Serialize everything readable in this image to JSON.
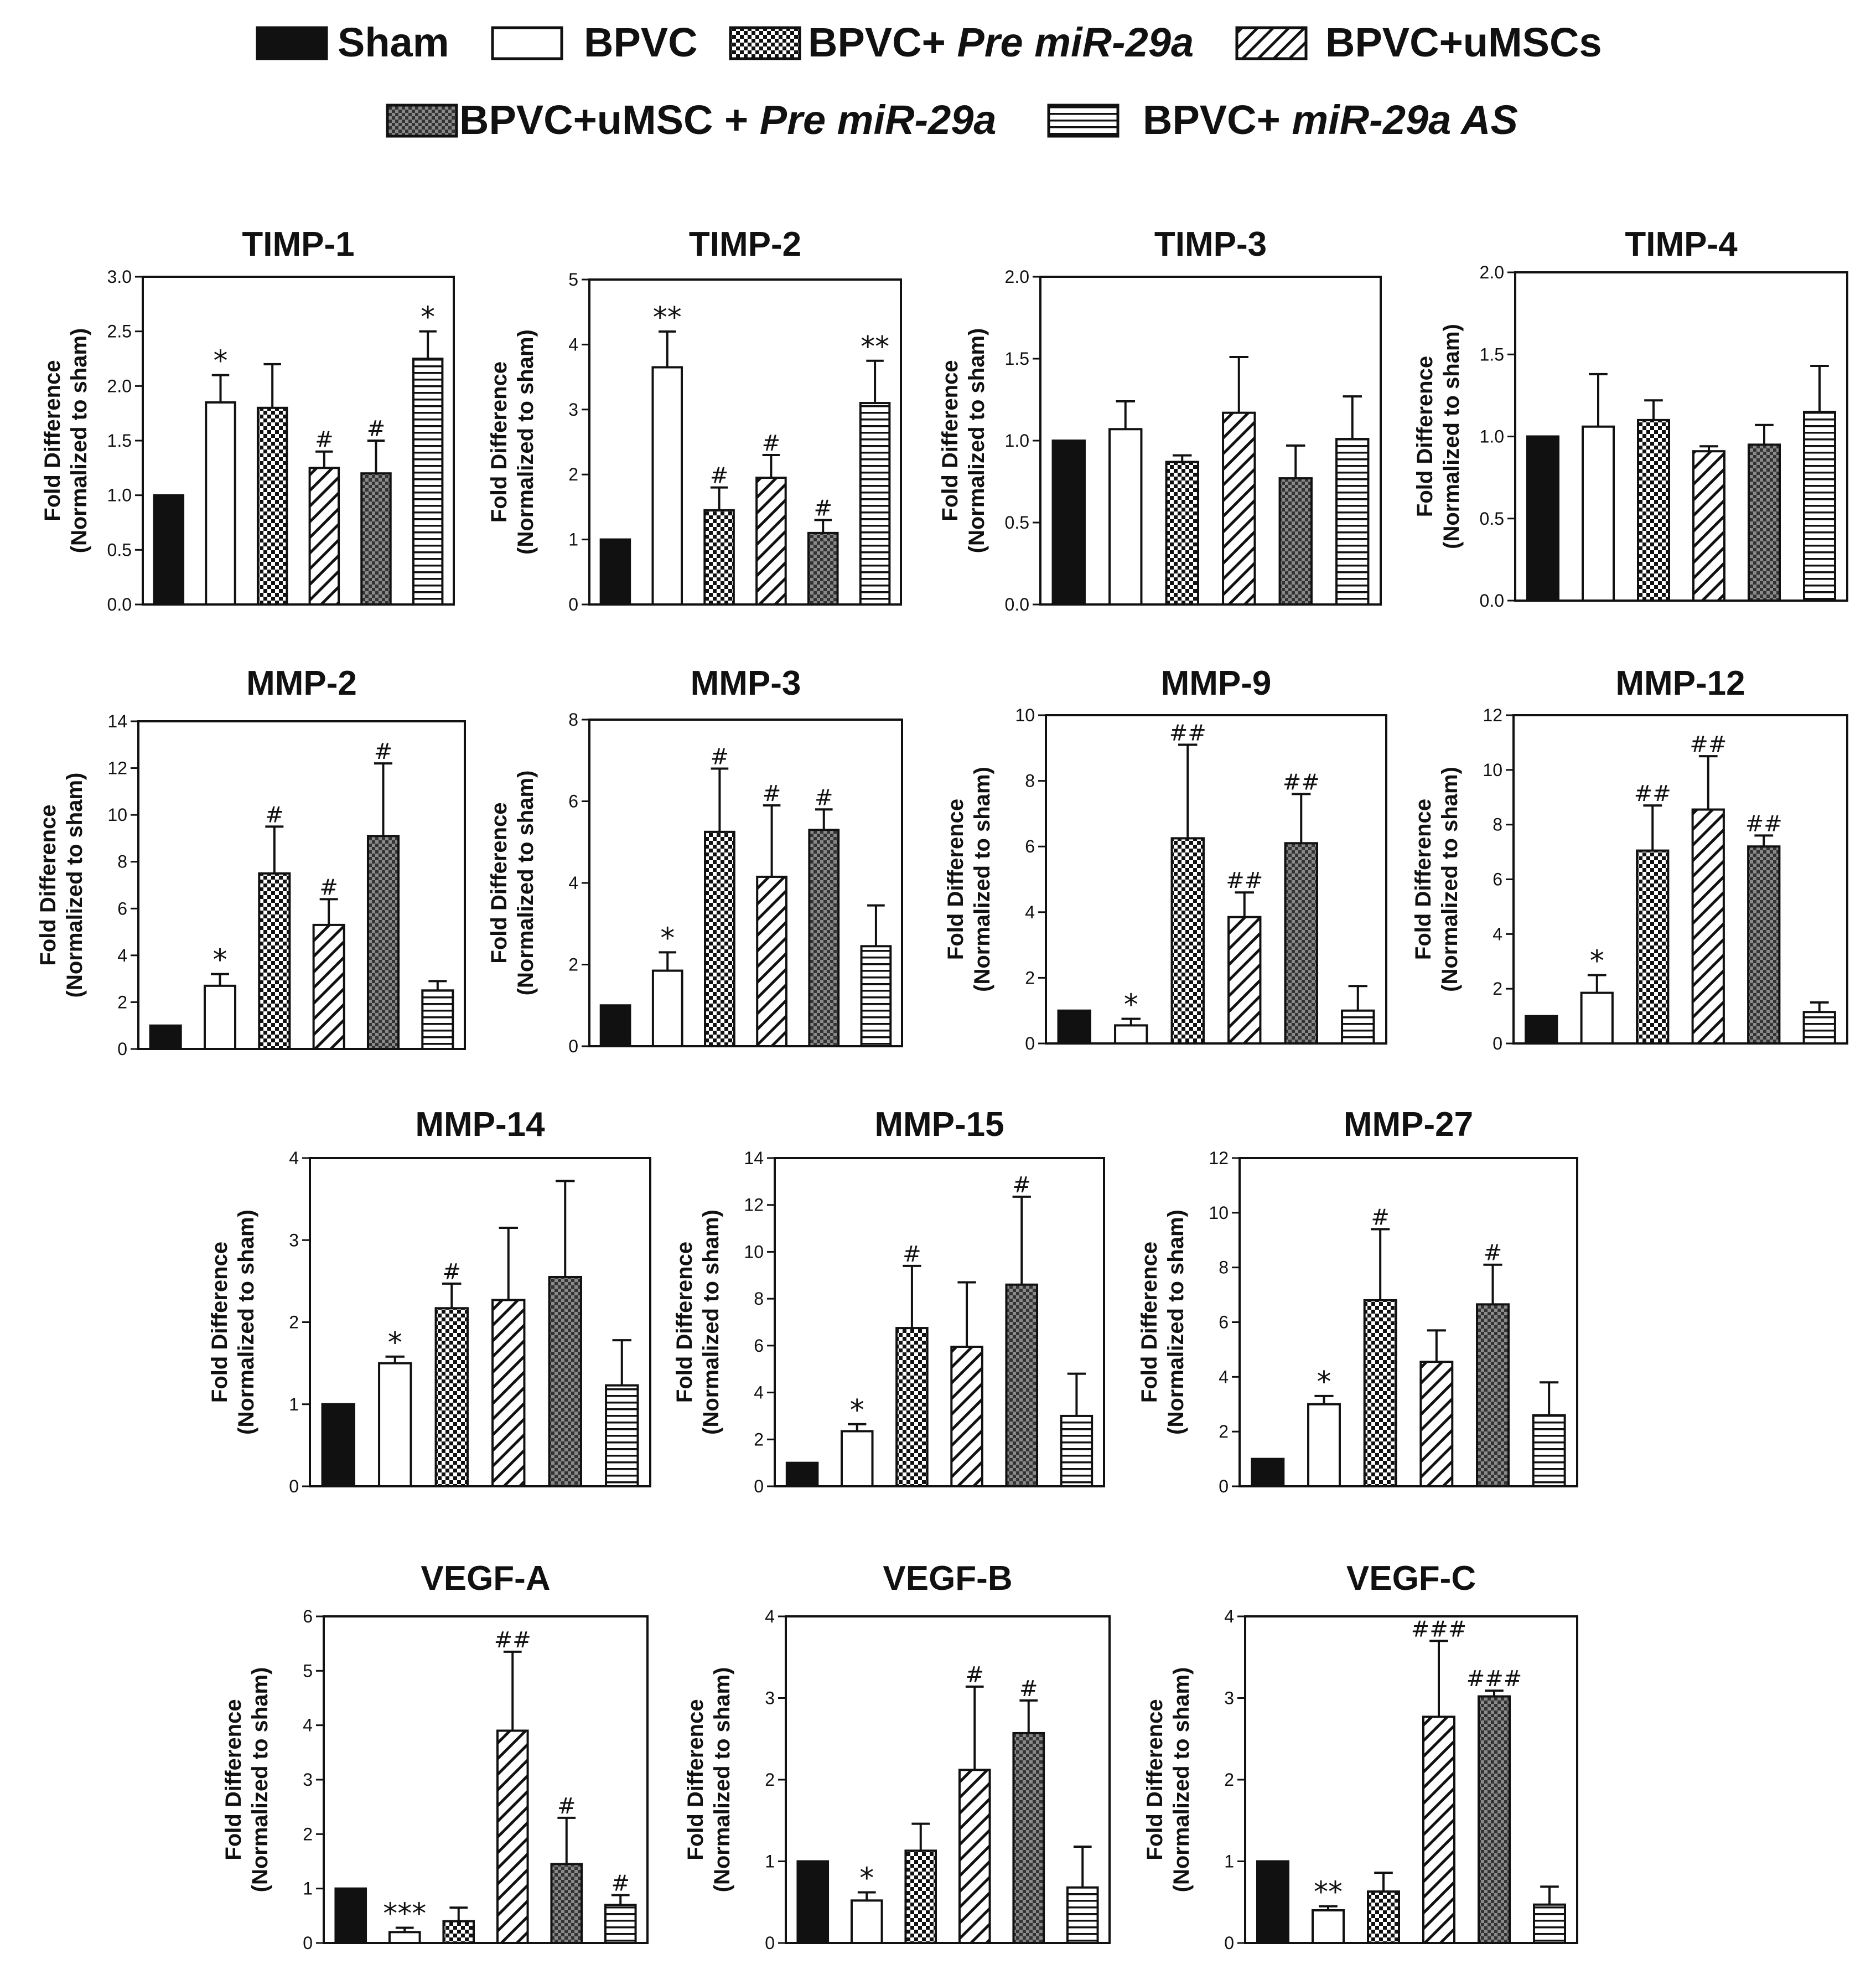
{
  "figure": {
    "ylabel_line1": "Fold Difference",
    "ylabel_line2": "(Normalized to sham)"
  },
  "legend": {
    "items": [
      {
        "key": "sham",
        "parts": [
          {
            "text": "Sham",
            "italic": false
          }
        ]
      },
      {
        "key": "bpvc",
        "parts": [
          {
            "text": "BPVC",
            "italic": false
          }
        ]
      },
      {
        "key": "pre",
        "parts": [
          {
            "text": "BPVC+ ",
            "italic": false
          },
          {
            "text": "Pre miR-29a",
            "italic": true
          }
        ]
      },
      {
        "key": "umsc",
        "parts": [
          {
            "text": "BPVC+uMSCs",
            "italic": false
          }
        ]
      },
      {
        "key": "umscpre",
        "parts": [
          {
            "text": "BPVC+uMSC + ",
            "italic": false
          },
          {
            "text": "Pre miR-29a",
            "italic": true
          }
        ]
      },
      {
        "key": "as",
        "parts": [
          {
            "text": "BPVC+ ",
            "italic": false
          },
          {
            "text": "miR-29a AS",
            "italic": true
          }
        ]
      }
    ]
  },
  "chart_data": [
    {
      "type": "bar",
      "title": "TIMP-1",
      "ylim": [
        0,
        3
      ],
      "yticks": [
        "0.0",
        "0.5",
        "1.0",
        "1.5",
        "2.0",
        "2.5",
        "3.0"
      ],
      "categories": [
        "Sham",
        "BPVC",
        "BPVC+ Pre miR-29a",
        "BPVC+uMSCs",
        "BPVC+uMSC + Pre miR-29a",
        "BPVC+ miR-29a AS"
      ],
      "values": [
        1.0,
        1.85,
        1.8,
        1.25,
        1.2,
        2.25
      ],
      "errors": [
        0,
        0.25,
        0.4,
        0.15,
        0.3,
        0.25
      ],
      "annotations": [
        "",
        "*",
        "",
        "#",
        "#",
        "*"
      ]
    },
    {
      "type": "bar",
      "title": "TIMP-2",
      "ylim": [
        0,
        5
      ],
      "yticks": [
        "0",
        "1",
        "2",
        "3",
        "4",
        "5"
      ],
      "categories": [
        "Sham",
        "BPVC",
        "BPVC+ Pre miR-29a",
        "BPVC+uMSCs",
        "BPVC+uMSC + Pre miR-29a",
        "BPVC+ miR-29a AS"
      ],
      "values": [
        1.0,
        3.65,
        1.45,
        1.95,
        1.1,
        3.1
      ],
      "errors": [
        0,
        0.55,
        0.35,
        0.35,
        0.2,
        0.65
      ],
      "annotations": [
        "",
        "**",
        "#",
        "#",
        "#",
        "**"
      ]
    },
    {
      "type": "bar",
      "title": "TIMP-3",
      "ylim": [
        0,
        2
      ],
      "yticks": [
        "0.0",
        "0.5",
        "1.0",
        "1.5",
        "2.0"
      ],
      "categories": [
        "Sham",
        "BPVC",
        "BPVC+ Pre miR-29a",
        "BPVC+uMSCs",
        "BPVC+uMSC + Pre miR-29a",
        "BPVC+ miR-29a AS"
      ],
      "values": [
        1.0,
        1.07,
        0.87,
        1.17,
        0.77,
        1.01
      ],
      "errors": [
        0,
        0.17,
        0.04,
        0.34,
        0.2,
        0.26
      ],
      "annotations": [
        "",
        "",
        "",
        "",
        "",
        ""
      ]
    },
    {
      "type": "bar",
      "title": "TIMP-4",
      "ylim": [
        0,
        2
      ],
      "yticks": [
        "0.0",
        "0.5",
        "1.0",
        "1.5",
        "2.0"
      ],
      "categories": [
        "Sham",
        "BPVC",
        "BPVC+ Pre miR-29a",
        "BPVC+uMSCs",
        "BPVC+uMSC + Pre miR-29a",
        "BPVC+ miR-29a AS"
      ],
      "values": [
        1.0,
        1.06,
        1.1,
        0.91,
        0.95,
        1.15
      ],
      "errors": [
        0,
        0.32,
        0.12,
        0.03,
        0.12,
        0.28
      ],
      "annotations": [
        "",
        "",
        "",
        "",
        "",
        ""
      ]
    },
    {
      "type": "bar",
      "title": "MMP-2",
      "ylim": [
        0,
        14
      ],
      "yticks": [
        "0",
        "2",
        "4",
        "6",
        "8",
        "10",
        "12",
        "14"
      ],
      "categories": [
        "Sham",
        "BPVC",
        "BPVC+ Pre miR-29a",
        "BPVC+uMSCs",
        "BPVC+uMSC + Pre miR-29a",
        "BPVC+ miR-29a AS"
      ],
      "values": [
        1.0,
        2.7,
        7.5,
        5.3,
        9.1,
        2.5
      ],
      "errors": [
        0,
        0.5,
        2.0,
        1.1,
        3.1,
        0.4
      ],
      "annotations": [
        "",
        "*",
        "#",
        "#",
        "#",
        ""
      ]
    },
    {
      "type": "bar",
      "title": "MMP-3",
      "ylim": [
        0,
        8
      ],
      "yticks": [
        "0",
        "2",
        "4",
        "6",
        "8"
      ],
      "categories": [
        "Sham",
        "BPVC",
        "BPVC+ Pre miR-29a",
        "BPVC+uMSCs",
        "BPVC+uMSC + Pre miR-29a",
        "BPVC+ miR-29a AS"
      ],
      "values": [
        1.0,
        1.85,
        5.25,
        4.15,
        5.3,
        2.45
      ],
      "errors": [
        0,
        0.45,
        1.55,
        1.75,
        0.5,
        1.0
      ],
      "annotations": [
        "",
        "*",
        "#",
        "#",
        "#",
        ""
      ]
    },
    {
      "type": "bar",
      "title": "MMP-9",
      "ylim": [
        0,
        10
      ],
      "yticks": [
        "0",
        "2",
        "4",
        "6",
        "8",
        "10"
      ],
      "categories": [
        "Sham",
        "BPVC",
        "BPVC+ Pre miR-29a",
        "BPVC+uMSCs",
        "BPVC+uMSC + Pre miR-29a",
        "BPVC+ miR-29a AS"
      ],
      "values": [
        1.0,
        0.55,
        6.25,
        3.85,
        6.1,
        1.0
      ],
      "errors": [
        0,
        0.2,
        2.85,
        0.75,
        1.5,
        0.75
      ],
      "annotations": [
        "",
        "*",
        "##",
        "##",
        "##",
        ""
      ]
    },
    {
      "type": "bar",
      "title": "MMP-12",
      "ylim": [
        0,
        12
      ],
      "yticks": [
        "0",
        "2",
        "4",
        "6",
        "8",
        "10",
        "12"
      ],
      "categories": [
        "Sham",
        "BPVC",
        "BPVC+ Pre miR-29a",
        "BPVC+uMSCs",
        "BPVC+uMSC + Pre miR-29a",
        "BPVC+ miR-29a AS"
      ],
      "values": [
        1.0,
        1.85,
        7.05,
        8.55,
        7.2,
        1.15
      ],
      "errors": [
        0,
        0.65,
        1.65,
        1.95,
        0.4,
        0.35
      ],
      "annotations": [
        "",
        "*",
        "##",
        "##",
        "##",
        ""
      ]
    },
    {
      "type": "bar",
      "title": "MMP-14",
      "ylim": [
        0,
        4
      ],
      "yticks": [
        "0",
        "1",
        "2",
        "3",
        "4"
      ],
      "categories": [
        "Sham",
        "BPVC",
        "BPVC+ Pre miR-29a",
        "BPVC+uMSCs",
        "BPVC+uMSC + Pre miR-29a",
        "BPVC+ miR-29a AS"
      ],
      "values": [
        1.0,
        1.5,
        2.17,
        2.27,
        2.55,
        1.23
      ],
      "errors": [
        0,
        0.08,
        0.3,
        0.88,
        1.17,
        0.55
      ],
      "annotations": [
        "",
        "*",
        "#",
        "",
        "",
        ""
      ]
    },
    {
      "type": "bar",
      "title": "MMP-15",
      "ylim": [
        0,
        14
      ],
      "yticks": [
        "0",
        "2",
        "4",
        "6",
        "8",
        "10",
        "12",
        "14"
      ],
      "categories": [
        "Sham",
        "BPVC",
        "BPVC+ Pre miR-29a",
        "BPVC+uMSCs",
        "BPVC+uMSC + Pre miR-29a",
        "BPVC+ miR-29a AS"
      ],
      "values": [
        1.0,
        2.35,
        6.75,
        5.95,
        8.6,
        3.0
      ],
      "errors": [
        0,
        0.3,
        2.65,
        2.75,
        3.75,
        1.8
      ],
      "annotations": [
        "",
        "*",
        "#",
        "",
        "#",
        ""
      ]
    },
    {
      "type": "bar",
      "title": "MMP-27",
      "ylim": [
        0,
        12
      ],
      "yticks": [
        "0",
        "2",
        "4",
        "6",
        "8",
        "10",
        "12"
      ],
      "categories": [
        "Sham",
        "BPVC",
        "BPVC+ Pre miR-29a",
        "BPVC+uMSCs",
        "BPVC+uMSC + Pre miR-29a",
        "BPVC+ miR-29a AS"
      ],
      "values": [
        1.0,
        3.0,
        6.8,
        4.55,
        6.65,
        2.6
      ],
      "errors": [
        0,
        0.3,
        2.6,
        1.15,
        1.45,
        1.2
      ],
      "annotations": [
        "",
        "*",
        "#",
        "",
        "#",
        ""
      ]
    },
    {
      "type": "bar",
      "title": "VEGF-A",
      "ylim": [
        0,
        6
      ],
      "yticks": [
        "0",
        "1",
        "2",
        "3",
        "4",
        "5",
        "6"
      ],
      "categories": [
        "Sham",
        "BPVC",
        "BPVC+ Pre miR-29a",
        "BPVC+uMSCs",
        "BPVC+uMSC + Pre miR-29a",
        "BPVC+ miR-29a AS"
      ],
      "values": [
        1.0,
        0.2,
        0.4,
        3.9,
        1.45,
        0.7
      ],
      "errors": [
        0,
        0.08,
        0.25,
        1.45,
        0.85,
        0.18
      ],
      "annotations": [
        "",
        "***",
        "",
        "##",
        "#",
        "#"
      ]
    },
    {
      "type": "bar",
      "title": "VEGF-B",
      "ylim": [
        0,
        4
      ],
      "yticks": [
        "0",
        "1",
        "2",
        "3",
        "4"
      ],
      "categories": [
        "Sham",
        "BPVC",
        "BPVC+ Pre miR-29a",
        "BPVC+uMSCs",
        "BPVC+uMSC + Pre miR-29a",
        "BPVC+ miR-29a AS"
      ],
      "values": [
        1.0,
        0.52,
        1.13,
        2.12,
        2.57,
        0.68
      ],
      "errors": [
        0,
        0.1,
        0.33,
        1.02,
        0.4,
        0.5
      ],
      "annotations": [
        "",
        "*",
        "",
        "#",
        "#",
        ""
      ]
    },
    {
      "type": "bar",
      "title": "VEGF-C",
      "ylim": [
        0,
        4
      ],
      "yticks": [
        "0",
        "1",
        "2",
        "3",
        "4"
      ],
      "categories": [
        "Sham",
        "BPVC",
        "BPVC+ Pre miR-29a",
        "BPVC+uMSCs",
        "BPVC+uMSC + Pre miR-29a",
        "BPVC+ miR-29a AS"
      ],
      "values": [
        1.0,
        0.4,
        0.63,
        2.77,
        3.02,
        0.47
      ],
      "errors": [
        0,
        0.05,
        0.23,
        0.93,
        0.07,
        0.22
      ],
      "annotations": [
        "",
        "**",
        "",
        "###",
        "###",
        ""
      ]
    }
  ]
}
